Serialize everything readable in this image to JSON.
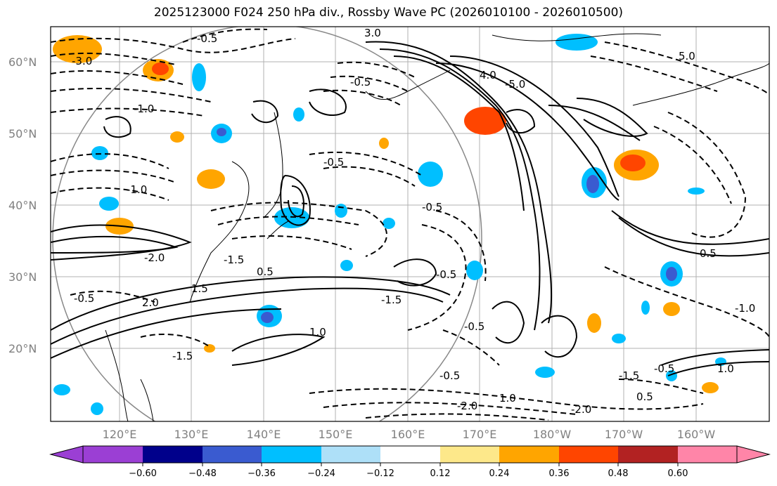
{
  "title": "2025123000 F024 250 hPa div., Rossby Wave PC (2026010100 - 2026010500)",
  "lat_ticks": [
    "60°N",
    "50°N",
    "40°N",
    "30°N",
    "20°N"
  ],
  "lon_ticks": [
    "120°E",
    "130°E",
    "140°E",
    "150°E",
    "160°E",
    "170°E",
    "180°W",
    "170°W",
    "160°W"
  ],
  "contour_labels": [
    "-3.0",
    "-0.5",
    "-5.0",
    "-0.5",
    "4.0",
    "-2.0",
    "-0.5",
    "3.0",
    "-1.5",
    "-1.0",
    "2.0",
    "1.5",
    "1.0",
    "0.5",
    "-0.5",
    "-1.0",
    "-2.0",
    "-1.5",
    "0.5",
    "-0.5",
    "1.0",
    "-0.5",
    "-0.5",
    "-1.5",
    "-0.5",
    "1.0",
    "-1.0",
    "-0.5",
    "5.0",
    "-2.0",
    "-1.5",
    "0.5"
  ],
  "colorbar": {
    "ticks": [
      "−0.60",
      "−0.48",
      "−0.36",
      "−0.24",
      "−0.12",
      "0.12",
      "0.24",
      "0.36",
      "0.48",
      "0.60"
    ],
    "colors": [
      "#9b3fd4",
      "#00008b",
      "#3a5bd0",
      "#00bfff",
      "#aee0f8",
      "#ffffff",
      "#fde88a",
      "#ffa500",
      "#ff4500",
      "#b22222",
      "#ff85a8"
    ]
  }
}
